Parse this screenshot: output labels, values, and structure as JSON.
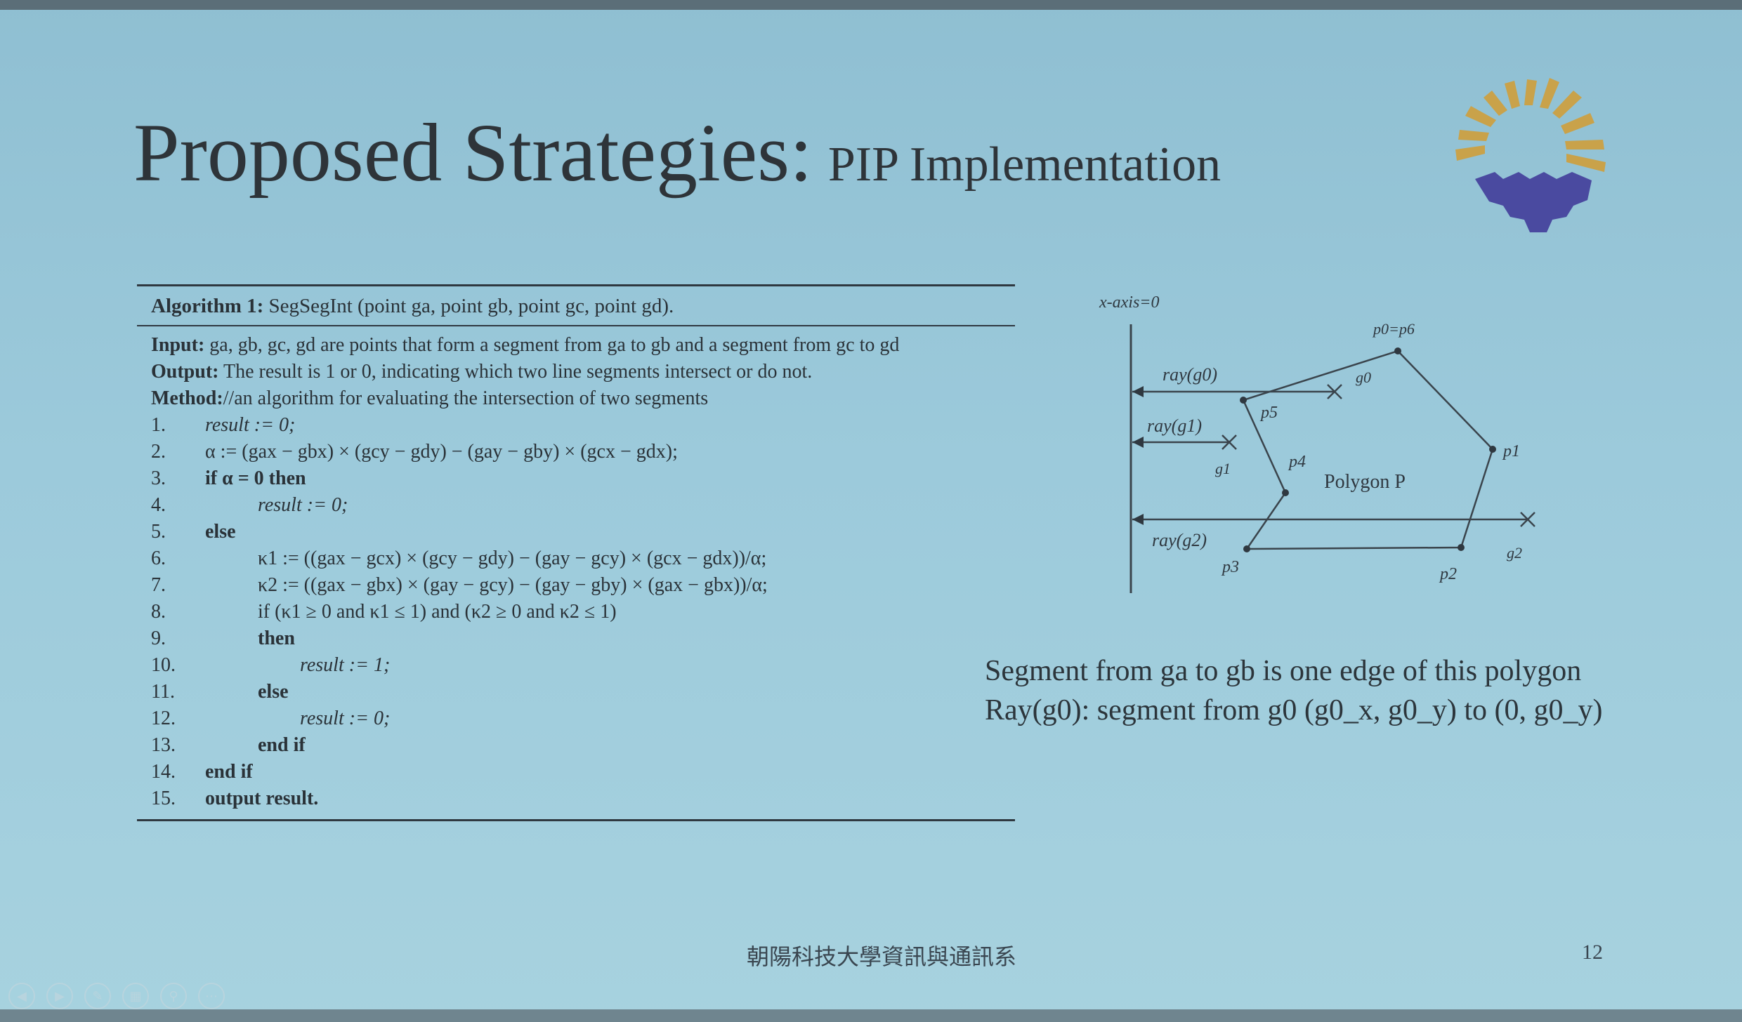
{
  "slide": {
    "title_main": "Proposed Strategies:",
    "title_sub": "PIP Implementation",
    "footer": "朝陽科技大學資訊與通訊系",
    "page_number": "12"
  },
  "algorithm": {
    "header_label": "Algorithm 1:",
    "header_rest": "SegSegInt (point ga, point gb, point gc, point gd).",
    "input_label": "Input:",
    "input_text": "ga, gb, gc, gd are points that form a segment from ga to gb and a segment from gc to gd",
    "output_label": "Output:",
    "output_text": "The result is 1 or 0, indicating which two line segments intersect or do not.",
    "method_label": "Method:",
    "method_text": "//an algorithm for evaluating the intersection of two segments",
    "lines": [
      {
        "n": "1.",
        "text": "result := 0;"
      },
      {
        "n": "2.",
        "text": "α := (gax − gbx) × (gcy − gdy) − (gay − gby) × (gcx − gdx);"
      },
      {
        "n": "3.",
        "text": "if α = 0 then"
      },
      {
        "n": "4.",
        "text": "result := 0;"
      },
      {
        "n": "5.",
        "text": "else"
      },
      {
        "n": "6.",
        "text": "κ1 := ((gax − gcx) × (gcy − gdy) − (gay − gcy) × (gcx − gdx))/α;"
      },
      {
        "n": "7.",
        "text": "κ2 := ((gax − gbx) × (gay − gcy) − (gay − gby) × (gax − gbx))/α;"
      },
      {
        "n": "8.",
        "text": "if (κ1 ≥ 0 and κ1 ≤ 1) and (κ2 ≥ 0 and κ2 ≤ 1)"
      },
      {
        "n": "9.",
        "text": "then"
      },
      {
        "n": "10.",
        "text": "result := 1;"
      },
      {
        "n": "11.",
        "text": "else"
      },
      {
        "n": "12.",
        "text": "result := 0;"
      },
      {
        "n": "13.",
        "text": "end if"
      },
      {
        "n": "14.",
        "text": "end if"
      },
      {
        "n": "15.",
        "text": "output result."
      }
    ]
  },
  "diagram": {
    "axis_label": "x-axis=0",
    "p0p6": "p0=p6",
    "p1": "p1",
    "p2": "p2",
    "p3": "p3",
    "p4": "p4",
    "p5": "p5",
    "g0": "g0",
    "g1": "g1",
    "g2": "g2",
    "ray_g0": "ray(g0)",
    "ray_g1": "ray(g1)",
    "ray_g2": "ray(g2)",
    "polygon_label": "Polygon P"
  },
  "caption": {
    "line1": "Segment from ga to gb is one edge of this polygon",
    "line2": "Ray(g0): segment from g0 (g0_x, g0_y) to (0, g0_y)"
  },
  "colors": {
    "background": "#9ccadb",
    "logo_rays": "#c9a24a",
    "logo_gear": "#4a4aa0"
  }
}
